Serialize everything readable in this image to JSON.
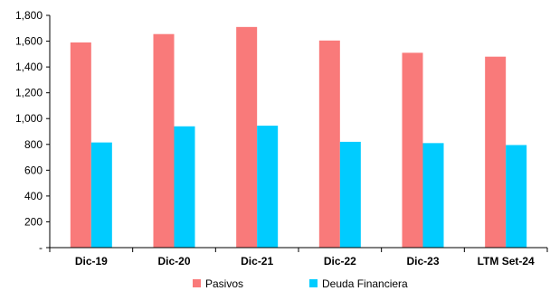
{
  "chart_data": {
    "type": "bar",
    "categories": [
      "Dic-19",
      "Dic-20",
      "Dic-21",
      "Dic-22",
      "Dic-23",
      "LTM Set-24"
    ],
    "series": [
      {
        "name": "Pasivos",
        "color": "#f97a7a",
        "values": [
          1590,
          1655,
          1710,
          1605,
          1510,
          1480
        ]
      },
      {
        "name": "Deuda Financiera",
        "color": "#00ccff",
        "values": [
          815,
          940,
          945,
          820,
          810,
          795
        ]
      }
    ],
    "y_ticks": [
      {
        "value": 0,
        "label": "-"
      },
      {
        "value": 200,
        "label": "200"
      },
      {
        "value": 400,
        "label": "400"
      },
      {
        "value": 600,
        "label": "600"
      },
      {
        "value": 800,
        "label": "800"
      },
      {
        "value": 1000,
        "label": "1,000"
      },
      {
        "value": 1200,
        "label": "1,200"
      },
      {
        "value": 1400,
        "label": "1,400"
      },
      {
        "value": 1600,
        "label": "1,600"
      },
      {
        "value": 1800,
        "label": "1,800"
      }
    ],
    "ylim": [
      0,
      1800
    ],
    "title": "",
    "xlabel": "",
    "ylabel": "",
    "grid": false,
    "legend_position": "bottom"
  }
}
